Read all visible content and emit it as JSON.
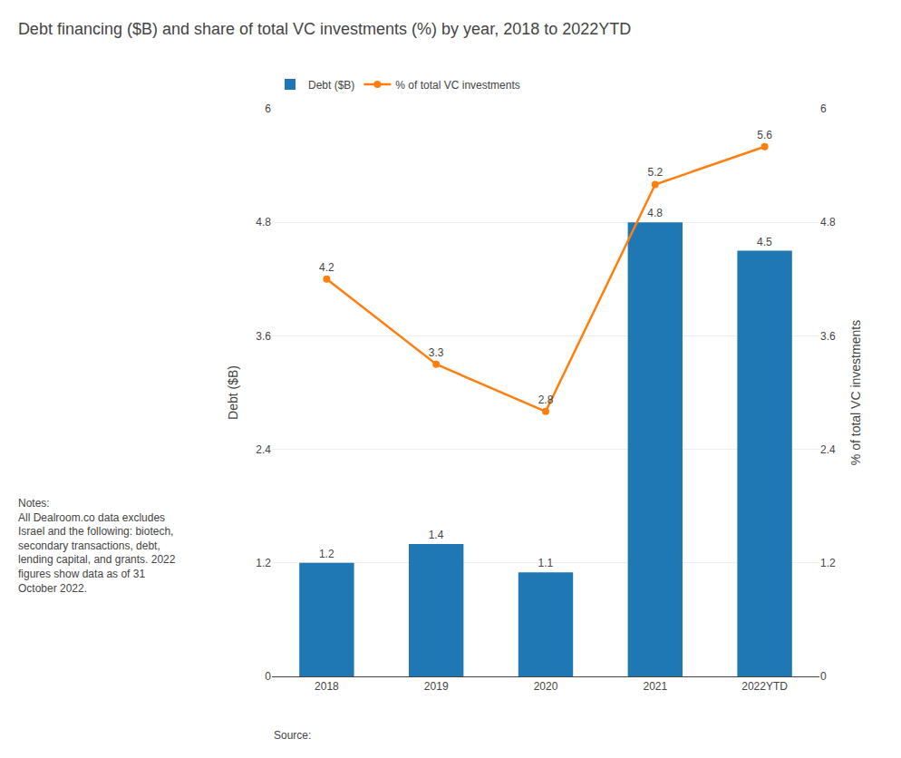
{
  "chart_data": {
    "type": "bar",
    "title": "Debt financing ($B) and share of total VC investments (%) by year, 2018 to 2022YTD",
    "categories": [
      "2018",
      "2019",
      "2020",
      "2021",
      "2022YTD"
    ],
    "series": [
      {
        "name": "Debt ($B)",
        "type": "bar",
        "values": [
          1.2,
          1.4,
          1.1,
          4.8,
          4.5
        ]
      },
      {
        "name": "% of total VC investments",
        "type": "line",
        "axis": "y2",
        "marker": "circle",
        "values": [
          4.2,
          3.3,
          2.8,
          5.2,
          5.6
        ]
      }
    ],
    "ylabel": "Debt ($B)",
    "y2label": "% of total VC investments",
    "ylim": [
      0,
      6
    ],
    "yticks": [
      0,
      1.2,
      2.4,
      3.6,
      4.8,
      6
    ],
    "y2lim": [
      0,
      6
    ],
    "y2ticks": [
      0,
      1.2,
      2.4,
      3.6,
      4.8,
      6
    ],
    "grid": true,
    "data_labels": true,
    "legend": "top left",
    "annotations": [
      "Notes:\nAll Dealroom.co data excludes\nIsrael and the following: biotech,\nsecondary transactions, debt,\nlending capital, and grants. 2022\nfigures show data as of 31\nOctober 2022.",
      "Source:"
    ]
  }
}
